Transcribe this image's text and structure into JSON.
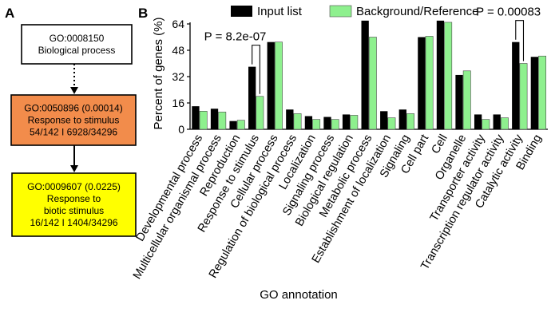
{
  "panel_a": {
    "label": "A",
    "boxes": [
      {
        "lines": [
          "GO:0008150",
          "Biological process"
        ],
        "fill": "#ffffff"
      },
      {
        "lines": [
          "GO:0050896 (0.00014)",
          "Response to stimulus",
          "54/142 I 6928/34296"
        ],
        "fill": "#f28c4b"
      },
      {
        "lines": [
          "GO:0009607 (0.0225)",
          "Response to",
          "biotic stimulus",
          "16/142 I 1404/34296"
        ],
        "fill": "#ffff00"
      }
    ]
  },
  "panel_b": {
    "label": "B"
  },
  "colors": {
    "input": "#000000",
    "background": "#8ef08e"
  },
  "chart_data": {
    "type": "bar",
    "xlabel": "GO annotation",
    "ylabel": "Percent of genes (%)",
    "ylim": [
      0,
      64
    ],
    "yticks": [
      0,
      16,
      32,
      48,
      64
    ],
    "legend_position": "top",
    "categories": [
      "Developmental process",
      "Multicellular organismal process",
      "Reproduction",
      "Response to stimulus",
      "Cellular process",
      "Regulation of biological process",
      "Localization",
      "Signaling process",
      "Biological regulation",
      "Metabolic process",
      "Establishment of localization",
      "Signaling",
      "Cell part",
      "Cell",
      "Organelle",
      "Transporter activity",
      "Transcription regulator activity",
      "Catalytic activity",
      "Binding"
    ],
    "series": [
      {
        "name": "Input list",
        "values": [
          14,
          12.5,
          5,
          38,
          53,
          12,
          8,
          7.5,
          9,
          66,
          11,
          12,
          56,
          66,
          33,
          9,
          9,
          53,
          44
        ]
      },
      {
        "name": "Background/Reference",
        "values": [
          11,
          10.5,
          5.5,
          20,
          53,
          9.5,
          6,
          6,
          8.5,
          56,
          7,
          9.5,
          56.5,
          65,
          35.5,
          6,
          7,
          40,
          44.5
        ]
      }
    ],
    "annotations": [
      {
        "text": "P = 8.2e-07",
        "category": "Response to stimulus"
      },
      {
        "text": "P = 0.00083",
        "category": "Catalytic activity"
      }
    ]
  }
}
